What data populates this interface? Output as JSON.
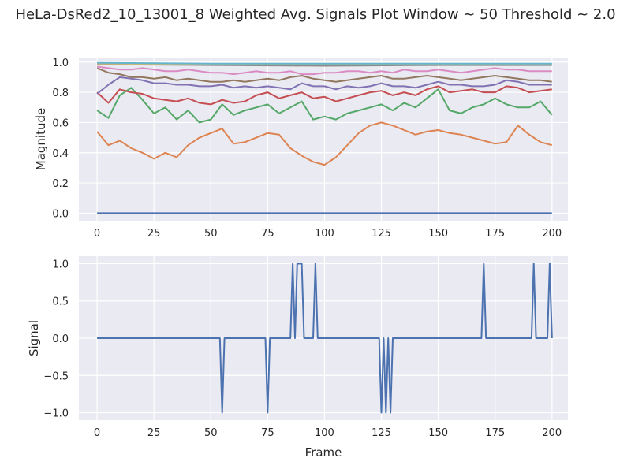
{
  "figure": {
    "title": "HeLa-DsRed2_10_13001_8 Weighted Avg. Signals Plot Window ~ 50 Threshold ~ 2.0"
  },
  "chart_data": [
    {
      "type": "line",
      "xlabel": "",
      "ylabel": "Magnitude",
      "xlim": [
        -8,
        207
      ],
      "ylim": [
        -0.05,
        1.03
      ],
      "xticks": [
        0,
        25,
        50,
        75,
        100,
        125,
        150,
        175,
        200
      ],
      "yticks": [
        "0.0",
        "0.2",
        "0.4",
        "0.6",
        "0.8",
        "1.0"
      ],
      "grid": true,
      "colors": [
        "#4c72b0",
        "#dd8452",
        "#55a868",
        "#c44e52",
        "#8172b3",
        "#937860",
        "#da8bc3",
        "#8c8c8c",
        "#ccb974",
        "#64b5cd"
      ],
      "series": [
        {
          "x": [
            0,
            200
          ],
          "values": [
            0.0,
            0.0
          ]
        },
        {
          "x": [
            0,
            5,
            10,
            15,
            20,
            25,
            30,
            35,
            40,
            45,
            50,
            55,
            60,
            65,
            70,
            75,
            80,
            85,
            90,
            95,
            100,
            105,
            110,
            115,
            120,
            125,
            130,
            135,
            140,
            145,
            150,
            155,
            160,
            165,
            170,
            175,
            180,
            185,
            190,
            195,
            200
          ],
          "values": [
            0.54,
            0.45,
            0.48,
            0.43,
            0.4,
            0.36,
            0.4,
            0.37,
            0.45,
            0.5,
            0.53,
            0.56,
            0.46,
            0.47,
            0.5,
            0.53,
            0.52,
            0.43,
            0.38,
            0.34,
            0.32,
            0.37,
            0.45,
            0.53,
            0.58,
            0.6,
            0.58,
            0.55,
            0.52,
            0.54,
            0.55,
            0.53,
            0.52,
            0.5,
            0.48,
            0.46,
            0.47,
            0.58,
            0.52,
            0.47,
            0.45
          ]
        },
        {
          "x": [
            0,
            5,
            10,
            15,
            20,
            25,
            30,
            35,
            40,
            45,
            50,
            55,
            60,
            65,
            70,
            75,
            80,
            85,
            90,
            95,
            100,
            105,
            110,
            115,
            120,
            125,
            130,
            135,
            140,
            145,
            150,
            155,
            160,
            165,
            170,
            175,
            180,
            185,
            190,
            195,
            200
          ],
          "values": [
            0.68,
            0.63,
            0.78,
            0.83,
            0.75,
            0.66,
            0.7,
            0.62,
            0.68,
            0.6,
            0.62,
            0.72,
            0.65,
            0.68,
            0.7,
            0.72,
            0.66,
            0.7,
            0.74,
            0.62,
            0.64,
            0.62,
            0.66,
            0.68,
            0.7,
            0.72,
            0.68,
            0.73,
            0.7,
            0.76,
            0.82,
            0.68,
            0.66,
            0.7,
            0.72,
            0.76,
            0.72,
            0.7,
            0.7,
            0.74,
            0.65
          ]
        },
        {
          "x": [
            0,
            5,
            10,
            15,
            20,
            25,
            30,
            35,
            40,
            45,
            50,
            55,
            60,
            65,
            70,
            75,
            80,
            85,
            90,
            95,
            100,
            105,
            110,
            115,
            120,
            125,
            130,
            135,
            140,
            145,
            150,
            155,
            160,
            165,
            170,
            175,
            180,
            185,
            190,
            195,
            200
          ],
          "values": [
            0.8,
            0.73,
            0.82,
            0.8,
            0.79,
            0.76,
            0.75,
            0.74,
            0.76,
            0.73,
            0.72,
            0.75,
            0.73,
            0.74,
            0.78,
            0.8,
            0.76,
            0.78,
            0.8,
            0.76,
            0.77,
            0.74,
            0.76,
            0.78,
            0.8,
            0.81,
            0.78,
            0.8,
            0.78,
            0.82,
            0.84,
            0.8,
            0.81,
            0.82,
            0.8,
            0.8,
            0.84,
            0.83,
            0.8,
            0.81,
            0.82
          ]
        },
        {
          "x": [
            0,
            5,
            10,
            15,
            20,
            25,
            30,
            35,
            40,
            45,
            50,
            55,
            60,
            65,
            70,
            75,
            80,
            85,
            90,
            95,
            100,
            105,
            110,
            115,
            120,
            125,
            130,
            135,
            140,
            145,
            150,
            155,
            160,
            165,
            170,
            175,
            180,
            185,
            190,
            195,
            200
          ],
          "values": [
            0.79,
            0.85,
            0.9,
            0.89,
            0.88,
            0.86,
            0.86,
            0.85,
            0.85,
            0.84,
            0.84,
            0.85,
            0.83,
            0.84,
            0.83,
            0.84,
            0.83,
            0.82,
            0.86,
            0.84,
            0.84,
            0.82,
            0.84,
            0.83,
            0.84,
            0.86,
            0.84,
            0.84,
            0.83,
            0.85,
            0.87,
            0.85,
            0.85,
            0.84,
            0.84,
            0.85,
            0.88,
            0.87,
            0.85,
            0.85,
            0.85
          ]
        },
        {
          "x": [
            0,
            5,
            10,
            15,
            20,
            25,
            30,
            35,
            40,
            45,
            50,
            55,
            60,
            65,
            70,
            75,
            80,
            85,
            90,
            95,
            100,
            105,
            110,
            115,
            120,
            125,
            130,
            135,
            140,
            145,
            150,
            155,
            160,
            165,
            170,
            175,
            180,
            185,
            190,
            195,
            200
          ],
          "values": [
            0.96,
            0.93,
            0.92,
            0.9,
            0.9,
            0.89,
            0.9,
            0.88,
            0.89,
            0.88,
            0.87,
            0.87,
            0.88,
            0.87,
            0.88,
            0.89,
            0.88,
            0.9,
            0.91,
            0.89,
            0.88,
            0.87,
            0.88,
            0.89,
            0.9,
            0.91,
            0.89,
            0.89,
            0.9,
            0.91,
            0.9,
            0.89,
            0.88,
            0.89,
            0.9,
            0.91,
            0.9,
            0.89,
            0.88,
            0.88,
            0.87
          ]
        },
        {
          "x": [
            0,
            5,
            10,
            15,
            20,
            25,
            30,
            35,
            40,
            45,
            50,
            55,
            60,
            65,
            70,
            75,
            80,
            85,
            90,
            95,
            100,
            105,
            110,
            115,
            120,
            125,
            130,
            135,
            140,
            145,
            150,
            155,
            160,
            165,
            170,
            175,
            180,
            185,
            190,
            195,
            200
          ],
          "values": [
            0.97,
            0.96,
            0.95,
            0.95,
            0.96,
            0.95,
            0.94,
            0.94,
            0.95,
            0.94,
            0.93,
            0.93,
            0.92,
            0.93,
            0.94,
            0.93,
            0.93,
            0.94,
            0.92,
            0.92,
            0.93,
            0.93,
            0.94,
            0.94,
            0.93,
            0.94,
            0.93,
            0.95,
            0.94,
            0.94,
            0.95,
            0.94,
            0.93,
            0.94,
            0.95,
            0.96,
            0.95,
            0.95,
            0.94,
            0.94,
            0.94
          ]
        },
        {
          "x": [
            0,
            50,
            100,
            150,
            200
          ],
          "values": [
            0.985,
            0.98,
            0.975,
            0.98,
            0.98
          ]
        },
        {
          "x": [
            0,
            50,
            100,
            150,
            200
          ],
          "values": [
            0.99,
            0.985,
            0.985,
            0.985,
            0.985
          ]
        },
        {
          "x": [
            0,
            50,
            100,
            150,
            200
          ],
          "values": [
            0.995,
            0.99,
            0.99,
            0.99,
            0.99
          ]
        }
      ]
    },
    {
      "type": "line",
      "xlabel": "Frame",
      "ylabel": "Signal",
      "xlim": [
        -8,
        207
      ],
      "ylim": [
        -1.1,
        1.1
      ],
      "xticks": [
        0,
        25,
        50,
        75,
        100,
        125,
        150,
        175,
        200
      ],
      "yticks": [
        "−1.0",
        "−0.5",
        "0.0",
        "0.5",
        "1.0"
      ],
      "grid": true,
      "series": [
        {
          "color": "#4c72b0",
          "x": [
            0,
            54,
            55,
            56,
            74,
            75,
            76,
            85,
            86,
            87,
            88,
            89,
            90,
            91,
            95,
            96,
            97,
            124,
            125,
            126,
            127,
            128,
            129,
            130,
            169,
            170,
            171,
            191,
            192,
            193,
            198,
            199,
            200
          ],
          "values": [
            0,
            0,
            -1,
            0,
            0,
            -1,
            0,
            0,
            1,
            0,
            1,
            1,
            1,
            0,
            0,
            1,
            0,
            0,
            -1,
            0,
            -1,
            0,
            -1,
            0,
            0,
            1,
            0,
            0,
            1,
            0,
            0,
            1,
            0
          ]
        }
      ]
    }
  ]
}
